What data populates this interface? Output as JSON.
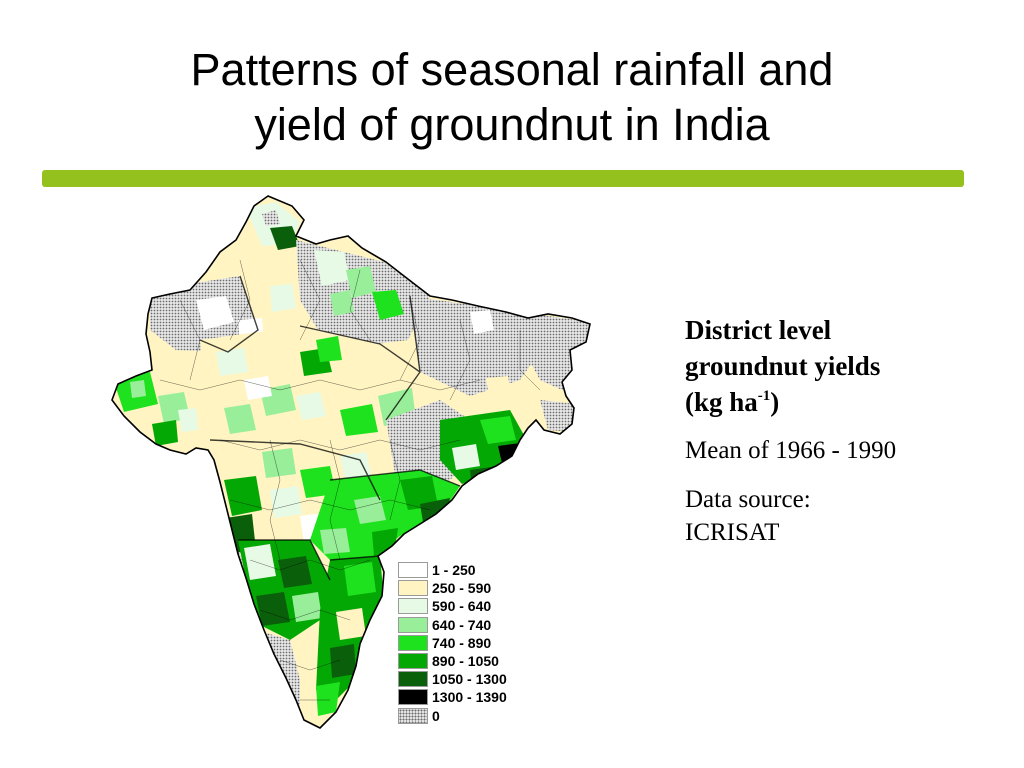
{
  "title": {
    "line1": "Patterns of seasonal rainfall and",
    "line2": "yield of groundnut in India"
  },
  "divider_color": "#95c11f",
  "side_panel": {
    "heading_line1": "District level",
    "heading_line2": "groundnut yields",
    "unit_prefix": "(kg ha",
    "unit_exp": "-1",
    "unit_suffix": ")",
    "mean": "Mean of 1966 - 1990",
    "source_line1": "Data source:",
    "source_line2": "ICRISAT"
  },
  "legend": [
    {
      "label": "1 - 250",
      "color": "#ffffff",
      "pattern": "solid"
    },
    {
      "label": "250 - 590",
      "color": "#fff4c2",
      "pattern": "solid"
    },
    {
      "label": "590 - 640",
      "color": "#e6fae6",
      "pattern": "solid"
    },
    {
      "label": "640 - 740",
      "color": "#99ee99",
      "pattern": "solid"
    },
    {
      "label": "740 - 890",
      "color": "#1de21d",
      "pattern": "solid"
    },
    {
      "label": "890 - 1050",
      "color": "#04a804",
      "pattern": "solid"
    },
    {
      "label": "1050 - 1300",
      "color": "#0a5f0a",
      "pattern": "solid"
    },
    {
      "label": "1300 - 1390",
      "color": "#000000",
      "pattern": "solid"
    },
    {
      "label": "0",
      "color": "#e8e8e8",
      "pattern": "dots"
    }
  ]
}
